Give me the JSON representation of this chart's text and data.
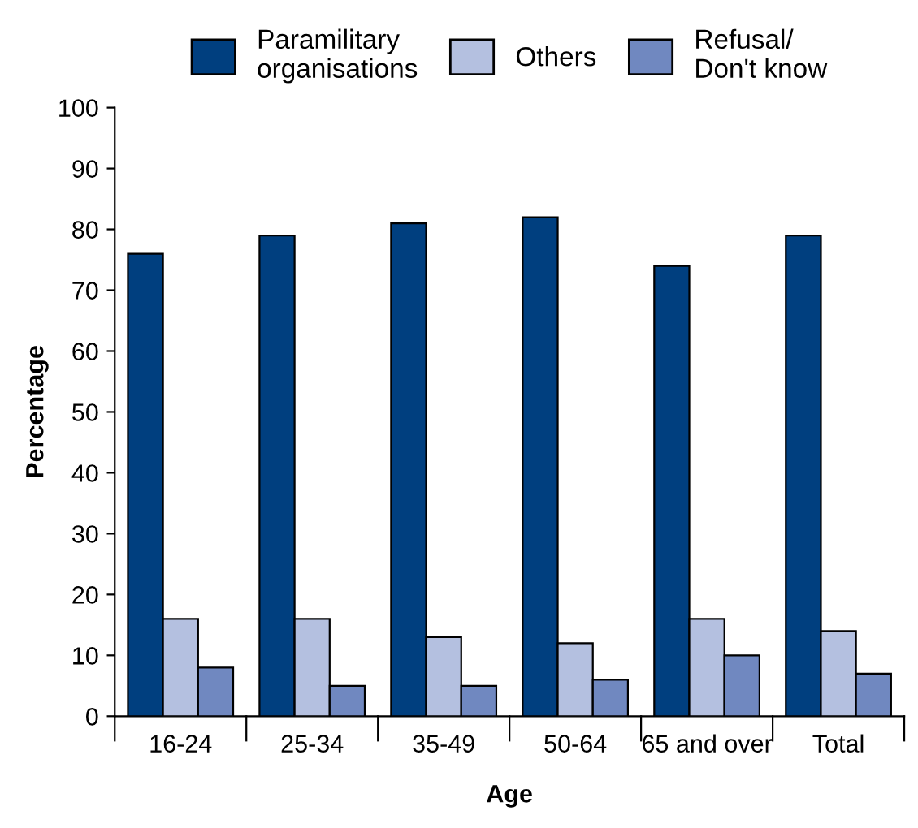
{
  "chart_data": {
    "type": "bar",
    "xlabel": "Age",
    "ylabel": "Percentage",
    "categories": [
      "16-24",
      "25-34",
      "35-49",
      "50-64",
      "65 and over",
      "Total"
    ],
    "series": [
      {
        "name": "Paramilitary\norganisations",
        "color": "#003f7f",
        "values": [
          76,
          79,
          81,
          82,
          74,
          79
        ]
      },
      {
        "name": "Others",
        "color": "#b4c0e0",
        "values": [
          16,
          16,
          13,
          12,
          16,
          14
        ]
      },
      {
        "name": "Refusal/\nDon't know",
        "color": "#7088c0",
        "values": [
          8,
          5,
          5,
          6,
          10,
          7
        ]
      }
    ],
    "ylim": [
      0,
      100
    ],
    "yticks": [
      0,
      10,
      20,
      30,
      40,
      50,
      60,
      70,
      80,
      90,
      100
    ],
    "grid": false,
    "legend": "top"
  }
}
